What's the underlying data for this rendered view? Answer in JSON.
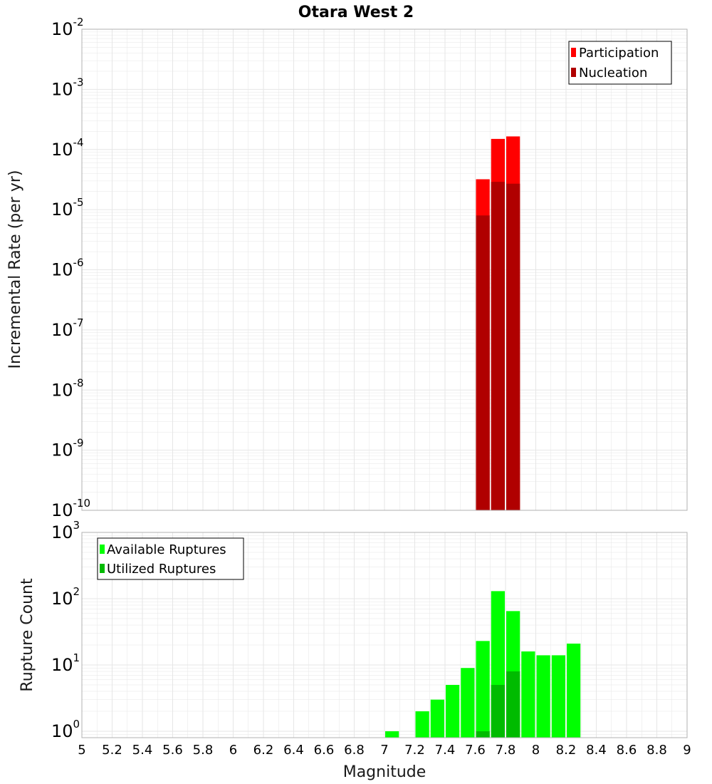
{
  "title": "Otara West 2",
  "xlabel": "Magnitude",
  "colors": {
    "participation": "#ff0000",
    "nucleation": "#b00000",
    "available": "#00ff00",
    "utilized": "#00bb00",
    "grid": "#e6e6e6",
    "frame": "#b0b0b0"
  },
  "x_ticks": [
    "5",
    "5.2",
    "5.4",
    "5.6",
    "5.8",
    "6",
    "6.2",
    "6.4",
    "6.6",
    "6.8",
    "7",
    "7.2",
    "7.4",
    "7.6",
    "7.8",
    "8",
    "8.2",
    "8.4",
    "8.6",
    "8.8",
    "9"
  ],
  "chart_data": [
    {
      "type": "bar",
      "panel": "top",
      "ylabel": "Incremental Rate (per yr)",
      "yscale": "log",
      "xlim": [
        5,
        9
      ],
      "ylim_exponents": [
        -10,
        -2
      ],
      "y_ticks": [
        {
          "base": "10",
          "exp": "-2"
        },
        {
          "base": "10",
          "exp": "-3"
        },
        {
          "base": "10",
          "exp": "-4"
        },
        {
          "base": "10",
          "exp": "-5"
        },
        {
          "base": "10",
          "exp": "-6"
        },
        {
          "base": "10",
          "exp": "-7"
        },
        {
          "base": "10",
          "exp": "-8"
        },
        {
          "base": "10",
          "exp": "-9"
        },
        {
          "base": "10",
          "exp": "-10"
        }
      ],
      "legend": {
        "position": "top-right",
        "entries": [
          "Participation",
          "Nucleation"
        ]
      },
      "bin_width": 0.1,
      "series": [
        {
          "name": "Participation",
          "x": [
            7.65,
            7.75,
            7.85
          ],
          "values": [
            3.2e-05,
            0.00015,
            0.000165
          ]
        },
        {
          "name": "Nucleation",
          "x": [
            7.65,
            7.75,
            7.85
          ],
          "values": [
            8e-06,
            2.9e-05,
            2.7e-05
          ]
        }
      ]
    },
    {
      "type": "bar",
      "panel": "bottom",
      "ylabel": "Rupture Count",
      "yscale": "log",
      "xlim": [
        5,
        9
      ],
      "ylim": [
        0.8,
        1000
      ],
      "y_ticks": [
        {
          "base": "10",
          "exp": "3",
          "value": 1000
        },
        {
          "base": "10",
          "exp": "2",
          "value": 100
        },
        {
          "base": "10",
          "exp": "1",
          "value": 10
        },
        {
          "base": "10",
          "exp": "0",
          "value": 1
        }
      ],
      "legend": {
        "position": "top-left",
        "entries": [
          "Available Ruptures",
          "Utilized Ruptures"
        ]
      },
      "bin_width": 0.1,
      "series": [
        {
          "name": "Available Ruptures",
          "x": [
            7.05,
            7.25,
            7.35,
            7.45,
            7.55,
            7.65,
            7.75,
            7.85,
            7.95,
            8.05,
            8.15,
            8.25
          ],
          "values": [
            1,
            2,
            3,
            5,
            9,
            23,
            130,
            65,
            16,
            14,
            14,
            21
          ]
        },
        {
          "name": "Utilized Ruptures",
          "x": [
            7.65,
            7.75,
            7.85
          ],
          "values": [
            1,
            5,
            8
          ]
        }
      ]
    }
  ]
}
